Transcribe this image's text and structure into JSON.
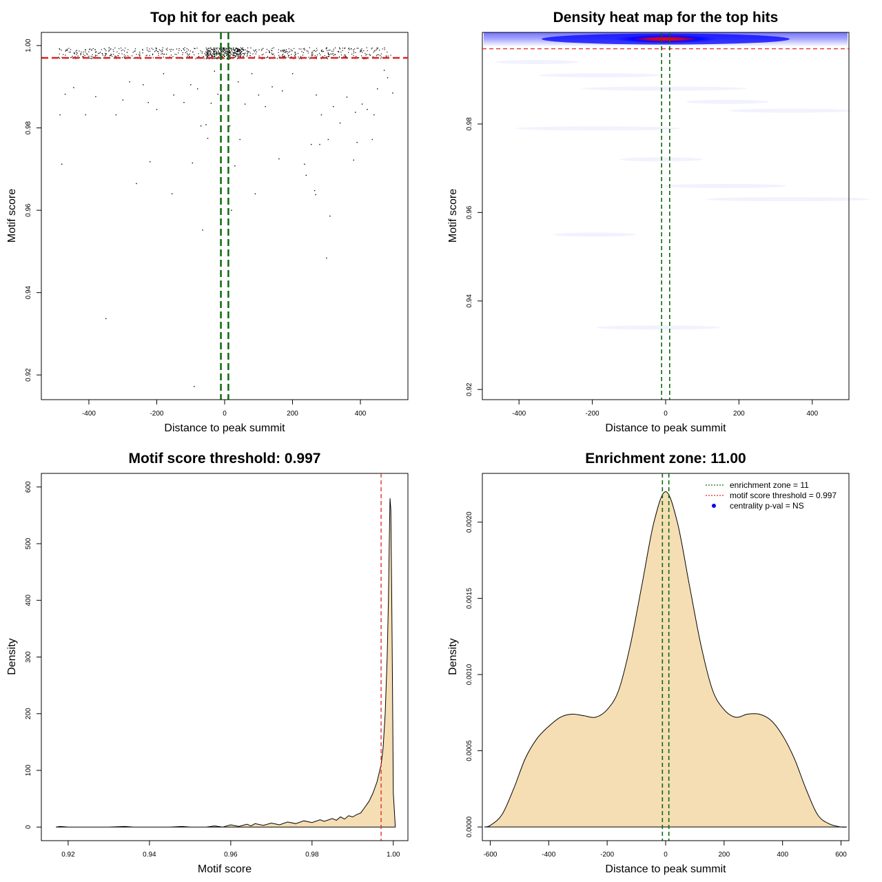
{
  "colors": {
    "threshold_red": "#e02020",
    "zone_green": "#0a6a0a",
    "fill_wheat": "#f5deb3",
    "heat_blue": "#0000ff",
    "heat_red": "#ff0000",
    "centrality_blue": "#0000ff"
  },
  "chart_data": [
    {
      "type": "scatter",
      "title": "Top hit for each peak",
      "xlabel": "Distance to peak summit",
      "ylabel": "Motif score",
      "xlim": [
        -540,
        540
      ],
      "ylim": [
        0.914,
        1.0032
      ],
      "x_ticks": [
        -400,
        -200,
        0,
        200,
        400
      ],
      "x_tick_labels": [
        "-400",
        "-200",
        "0",
        "200",
        "400"
      ],
      "y_ticks": [
        0.92,
        0.94,
        0.96,
        0.98,
        1.0
      ],
      "y_tick_labels": [
        "0.92",
        "0.94",
        "0.96",
        "0.98",
        "1.00"
      ],
      "threshold_hline": 0.997,
      "zone_vlines": [
        -11,
        11
      ],
      "outlier_points": [
        {
          "x": -480,
          "y": 0.9712
        },
        {
          "x": -485,
          "y": 0.9832
        },
        {
          "x": -470,
          "y": 0.9882
        },
        {
          "x": -445,
          "y": 0.9898
        },
        {
          "x": -410,
          "y": 0.9832
        },
        {
          "x": -380,
          "y": 0.9876
        },
        {
          "x": -350,
          "y": 0.9337
        },
        {
          "x": -320,
          "y": 0.9832
        },
        {
          "x": -300,
          "y": 0.9868
        },
        {
          "x": -280,
          "y": 0.9912
        },
        {
          "x": -260,
          "y": 0.9665
        },
        {
          "x": -240,
          "y": 0.9905
        },
        {
          "x": -225,
          "y": 0.9862
        },
        {
          "x": -220,
          "y": 0.9718
        },
        {
          "x": -200,
          "y": 0.9845
        },
        {
          "x": -180,
          "y": 0.9932
        },
        {
          "x": -155,
          "y": 0.964
        },
        {
          "x": -150,
          "y": 0.988
        },
        {
          "x": -120,
          "y": 0.9862
        },
        {
          "x": -100,
          "y": 0.9905
        },
        {
          "x": -95,
          "y": 0.9715
        },
        {
          "x": -90,
          "y": 0.9172
        },
        {
          "x": -80,
          "y": 0.9895
        },
        {
          "x": -70,
          "y": 0.9805
        },
        {
          "x": -65,
          "y": 0.9552
        },
        {
          "x": -55,
          "y": 0.9808
        },
        {
          "x": -50,
          "y": 0.9775
        },
        {
          "x": -40,
          "y": 0.986
        },
        {
          "x": -30,
          "y": 0.9938
        },
        {
          "x": -20,
          "y": 0.9882
        },
        {
          "x": 15,
          "y": 0.9805
        },
        {
          "x": 20,
          "y": 0.96
        },
        {
          "x": 30,
          "y": 0.9708
        },
        {
          "x": 40,
          "y": 0.9912
        },
        {
          "x": 45,
          "y": 0.9772
        },
        {
          "x": 60,
          "y": 0.9858
        },
        {
          "x": 80,
          "y": 0.9932
        },
        {
          "x": 90,
          "y": 0.964
        },
        {
          "x": 100,
          "y": 0.988
        },
        {
          "x": 120,
          "y": 0.9852
        },
        {
          "x": 140,
          "y": 0.99
        },
        {
          "x": 160,
          "y": 0.9725
        },
        {
          "x": 170,
          "y": 0.989
        },
        {
          "x": 200,
          "y": 0.9932
        },
        {
          "x": 235,
          "y": 0.9712
        },
        {
          "x": 240,
          "y": 0.9685
        },
        {
          "x": 255,
          "y": 0.976
        },
        {
          "x": 265,
          "y": 0.9648
        },
        {
          "x": 268,
          "y": 0.9638
        },
        {
          "x": 270,
          "y": 0.988
        },
        {
          "x": 280,
          "y": 0.976
        },
        {
          "x": 285,
          "y": 0.9832
        },
        {
          "x": 300,
          "y": 0.9484
        },
        {
          "x": 305,
          "y": 0.9772
        },
        {
          "x": 310,
          "y": 0.9586
        },
        {
          "x": 320,
          "y": 0.9852
        },
        {
          "x": 340,
          "y": 0.9812
        },
        {
          "x": 360,
          "y": 0.9875
        },
        {
          "x": 380,
          "y": 0.9722
        },
        {
          "x": 385,
          "y": 0.9838
        },
        {
          "x": 390,
          "y": 0.9765
        },
        {
          "x": 405,
          "y": 0.9858
        },
        {
          "x": 420,
          "y": 0.9845
        },
        {
          "x": 435,
          "y": 0.9772
        },
        {
          "x": 440,
          "y": 0.9832
        },
        {
          "x": 450,
          "y": 0.9895
        },
        {
          "x": 470,
          "y": 0.994
        },
        {
          "x": 480,
          "y": 0.9922
        },
        {
          "x": 495,
          "y": 0.9885
        }
      ]
    },
    {
      "type": "heatmap",
      "title": "Density heat map for the top hits",
      "xlabel": "Distance to peak summit",
      "ylabel": "Motif score",
      "xlim": [
        -500,
        500
      ],
      "ylim": [
        0.9177,
        1.0007
      ],
      "x_ticks": [
        -400,
        -200,
        0,
        200,
        400
      ],
      "x_tick_labels": [
        "-400",
        "-200",
        "0",
        "200",
        "400"
      ],
      "y_ticks": [
        0.92,
        0.94,
        0.96,
        0.98
      ],
      "y_tick_labels": [
        "0.92",
        "0.94",
        "0.96",
        "0.98"
      ],
      "threshold_hline": 0.997,
      "zone_vlines": [
        -11,
        11
      ],
      "peak_density_x": 0,
      "peak_density_y": 0.9992
    },
    {
      "type": "area",
      "title": "Motif score threshold: 0.997",
      "xlabel": "Motif score",
      "ylabel": "Density",
      "xlim": [
        0.9134,
        1.0036
      ],
      "ylim": [
        -24,
        624
      ],
      "x_ticks": [
        0.92,
        0.94,
        0.96,
        0.98,
        1.0
      ],
      "x_tick_labels": [
        "0.92",
        "0.94",
        "0.96",
        "0.98",
        "1.00"
      ],
      "y_ticks": [
        0,
        100,
        200,
        300,
        400,
        500,
        600
      ],
      "y_tick_labels": [
        "0",
        "100",
        "200",
        "300",
        "400",
        "500",
        "600"
      ],
      "threshold_vline": 0.997,
      "x": [
        0.917,
        0.918,
        0.92,
        0.93,
        0.934,
        0.936,
        0.945,
        0.948,
        0.95,
        0.954,
        0.956,
        0.958,
        0.96,
        0.962,
        0.964,
        0.965,
        0.966,
        0.968,
        0.97,
        0.972,
        0.974,
        0.976,
        0.978,
        0.98,
        0.982,
        0.983,
        0.985,
        0.986,
        0.987,
        0.988,
        0.989,
        0.99,
        0.991,
        0.992,
        0.993,
        0.994,
        0.995,
        0.996,
        0.997,
        0.9975,
        0.998,
        0.9985,
        0.9988,
        0.999,
        0.9992,
        0.9994,
        0.9996,
        0.9998,
        1.0,
        1.0005
      ],
      "y": [
        0,
        1,
        0,
        0,
        1,
        0,
        0,
        1,
        0,
        0,
        2,
        0,
        4,
        1,
        5,
        2,
        6,
        3,
        7,
        4,
        9,
        6,
        11,
        8,
        13,
        10,
        15,
        12,
        18,
        14,
        20,
        18,
        22,
        25,
        35,
        45,
        60,
        80,
        110,
        140,
        200,
        300,
        400,
        500,
        580,
        560,
        420,
        250,
        60,
        0
      ]
    },
    {
      "type": "area",
      "title": "Enrichment zone: 11.00",
      "xlabel": "Distance to peak summit",
      "ylabel": "Density",
      "xlim": [
        -627,
        627
      ],
      "ylim": [
        -9e-05,
        0.00232
      ],
      "x_ticks": [
        -600,
        -400,
        -200,
        0,
        200,
        400,
        600
      ],
      "x_tick_labels": [
        "-600",
        "-400",
        "-200",
        "0",
        "200",
        "400",
        "600"
      ],
      "y_ticks": [
        0,
        0.0005,
        0.001,
        0.0015,
        0.002
      ],
      "y_tick_labels": [
        "0.0000",
        "0.0005",
        "0.0010",
        "0.0015",
        "0.0020"
      ],
      "zone_vlines": [
        -11,
        11
      ],
      "x": [
        -620,
        -600,
        -560,
        -520,
        -480,
        -440,
        -400,
        -360,
        -320,
        -280,
        -240,
        -200,
        -160,
        -120,
        -80,
        -40,
        0,
        40,
        80,
        120,
        160,
        200,
        240,
        280,
        320,
        360,
        400,
        440,
        480,
        520,
        560,
        600,
        620
      ],
      "y": [
        0.0,
        1e-05,
        8e-05,
        0.00025,
        0.00045,
        0.00058,
        0.00066,
        0.00072,
        0.00074,
        0.00073,
        0.00072,
        0.00077,
        0.0009,
        0.0012,
        0.0016,
        0.002,
        0.0022,
        0.002,
        0.0016,
        0.0012,
        0.0009,
        0.00077,
        0.00072,
        0.00074,
        0.00074,
        0.0007,
        0.0006,
        0.00045,
        0.00025,
        8e-05,
        2e-05,
        0.0,
        0.0
      ],
      "legend": [
        {
          "label": "enrichment zone = 11",
          "style": "dotted",
          "color": "#0a6a0a"
        },
        {
          "label": "motif score threshold = 0.997",
          "style": "dotted",
          "color": "#e02020"
        },
        {
          "label": "centrality p-val = NS",
          "style": "point",
          "color": "#0000ff"
        }
      ],
      "legend_position": "top-right"
    }
  ]
}
